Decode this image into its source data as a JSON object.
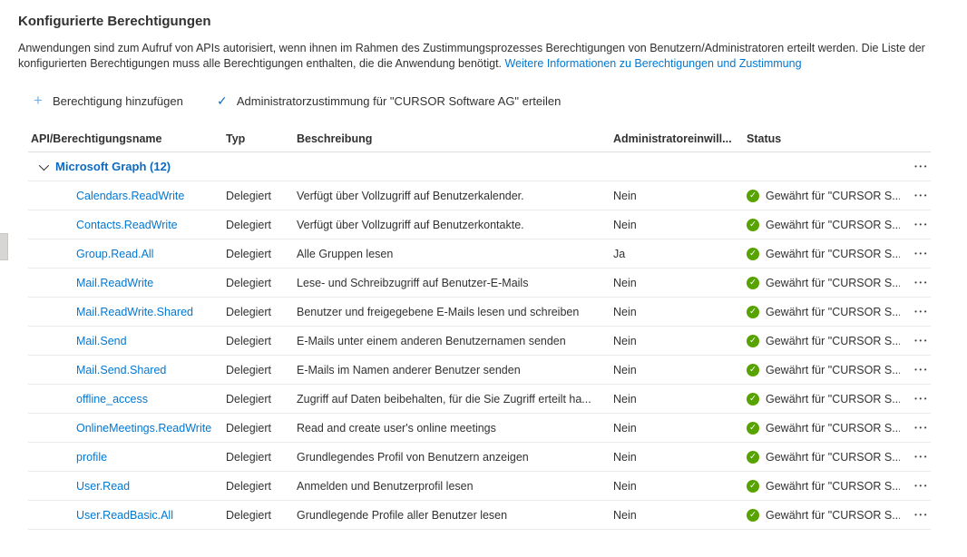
{
  "page": {
    "title": "Konfigurierte Berechtigungen",
    "description": "Anwendungen sind zum Aufruf von APIs autorisiert, wenn ihnen im Rahmen des Zustimmungsprozesses Berechtigungen von Benutzern/Administratoren erteilt werden. Die Liste der konfigurierten Berechtigungen muss alle Berechtigungen enthalten, die die Anwendung benötigt. ",
    "description_link": "Weitere Informationen zu Berechtigungen und Zustimmung"
  },
  "toolbar": {
    "add_permission_label": "Berechtigung hinzufügen",
    "admin_consent_label": "Administratorzustimmung für \"CURSOR Software AG\" erteilen",
    "plus_icon": "+",
    "check_icon": "✓"
  },
  "table": {
    "headers": {
      "name": "API/Berechtigungsname",
      "type": "Typ",
      "description": "Beschreibung",
      "admin_consent": "Administratoreinwill...",
      "status": "Status"
    },
    "group": {
      "label": "Microsoft Graph (12)",
      "menu_icon": "•••"
    },
    "menu_icon": "•••",
    "status_check_icon": "✓",
    "rows": [
      {
        "name": "Calendars.ReadWrite",
        "type": "Delegiert",
        "description": "Verfügt über Vollzugriff auf Benutzerkalender.",
        "admin": "Nein",
        "status": "Gewährt für \"CURSOR S..."
      },
      {
        "name": "Contacts.ReadWrite",
        "type": "Delegiert",
        "description": "Verfügt über Vollzugriff auf Benutzerkontakte.",
        "admin": "Nein",
        "status": "Gewährt für \"CURSOR S..."
      },
      {
        "name": "Group.Read.All",
        "type": "Delegiert",
        "description": "Alle Gruppen lesen",
        "admin": "Ja",
        "status": "Gewährt für \"CURSOR S..."
      },
      {
        "name": "Mail.ReadWrite",
        "type": "Delegiert",
        "description": "Lese- und Schreibzugriff auf Benutzer-E-Mails",
        "admin": "Nein",
        "status": "Gewährt für \"CURSOR S..."
      },
      {
        "name": "Mail.ReadWrite.Shared",
        "type": "Delegiert",
        "description": "Benutzer und freigegebene E-Mails lesen und schreiben",
        "admin": "Nein",
        "status": "Gewährt für \"CURSOR S..."
      },
      {
        "name": "Mail.Send",
        "type": "Delegiert",
        "description": "E-Mails unter einem anderen Benutzernamen senden",
        "admin": "Nein",
        "status": "Gewährt für \"CURSOR S..."
      },
      {
        "name": "Mail.Send.Shared",
        "type": "Delegiert",
        "description": "E-Mails im Namen anderer Benutzer senden",
        "admin": "Nein",
        "status": "Gewährt für \"CURSOR S..."
      },
      {
        "name": "offline_access",
        "type": "Delegiert",
        "description": "Zugriff auf Daten beibehalten, für die Sie Zugriff erteilt ha...",
        "admin": "Nein",
        "status": "Gewährt für \"CURSOR S..."
      },
      {
        "name": "OnlineMeetings.ReadWrite",
        "type": "Delegiert",
        "description": "Read and create user's online meetings",
        "admin": "Nein",
        "status": "Gewährt für \"CURSOR S..."
      },
      {
        "name": "profile",
        "type": "Delegiert",
        "description": "Grundlegendes Profil von Benutzern anzeigen",
        "admin": "Nein",
        "status": "Gewährt für \"CURSOR S..."
      },
      {
        "name": "User.Read",
        "type": "Delegiert",
        "description": "Anmelden und Benutzerprofil lesen",
        "admin": "Nein",
        "status": "Gewährt für \"CURSOR S..."
      },
      {
        "name": "User.ReadBasic.All",
        "type": "Delegiert",
        "description": "Grundlegende Profile aller Benutzer lesen",
        "admin": "Nein",
        "status": "Gewährt für \"CURSOR S..."
      }
    ]
  },
  "colors": {
    "accent_blue": "#0078d4",
    "toolbar_plus_blue": "#6cb2ee",
    "toolbar_check_blue": "#0b6bc2",
    "success_green": "#57a300",
    "text_primary": "#323130",
    "row_border": "#edebe9"
  }
}
